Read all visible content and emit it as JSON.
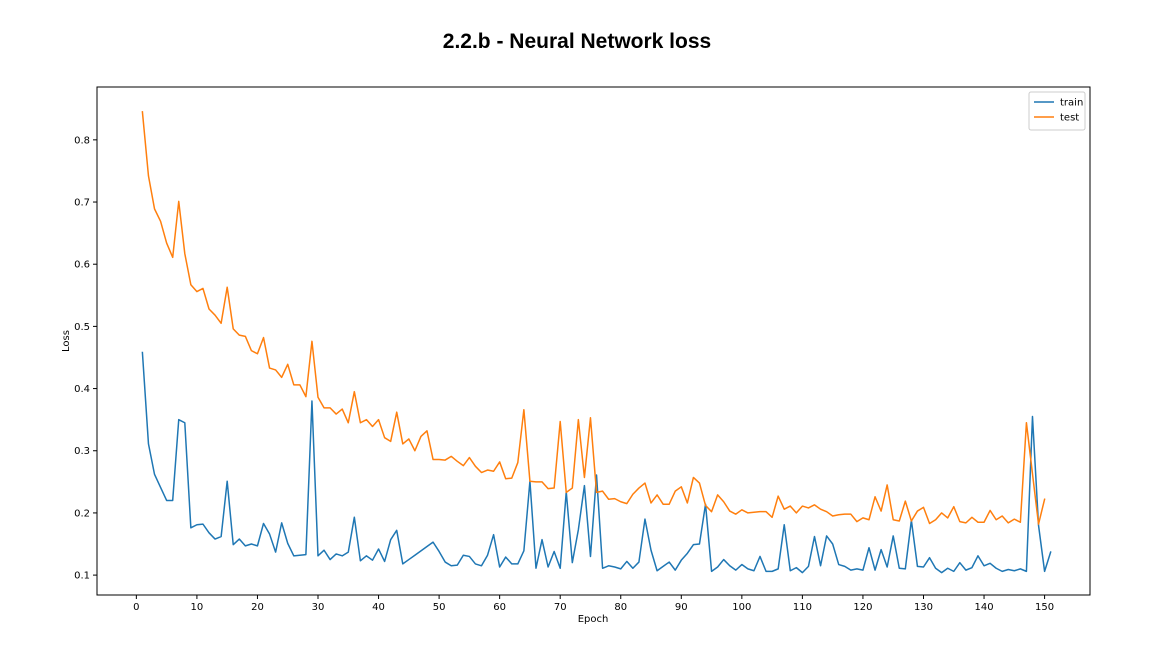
{
  "chart_data": {
    "type": "line",
    "title": "2.2.b - Neural Network loss",
    "xlabel": "Epoch",
    "ylabel": "Loss",
    "xlim": [
      -6.5,
      157.5
    ],
    "ylim": [
      0.068,
      0.885
    ],
    "xticks": [
      0,
      10,
      20,
      30,
      40,
      50,
      60,
      70,
      80,
      90,
      100,
      110,
      120,
      130,
      140,
      150
    ],
    "yticks": [
      0.1,
      0.2,
      0.3,
      0.4,
      0.5,
      0.6,
      0.7,
      0.8
    ],
    "x_start": 1,
    "legend_position": "top-right",
    "grid": false,
    "series": [
      {
        "name": "train",
        "color": "#1f77b4",
        "values": [
          0.458,
          0.311,
          0.262,
          0.241,
          0.22,
          0.22,
          0.35,
          0.345,
          0.176,
          0.181,
          0.182,
          0.168,
          0.158,
          0.162,
          0.251,
          0.149,
          0.158,
          0.147,
          0.15,
          0.147,
          0.183,
          0.166,
          0.137,
          0.184,
          0.151,
          0.131,
          0.132,
          0.133,
          0.38,
          0.131,
          0.14,
          0.125,
          0.134,
          0.131,
          0.137,
          0.193,
          0.123,
          0.131,
          0.124,
          0.142,
          0.122,
          0.157,
          0.172,
          0.118,
          0.125,
          0.132,
          0.139,
          0.146,
          0.153,
          0.138,
          0.121,
          0.115,
          0.116,
          0.132,
          0.13,
          0.118,
          0.115,
          0.132,
          0.165,
          0.113,
          0.129,
          0.118,
          0.118,
          0.139,
          0.251,
          0.111,
          0.157,
          0.113,
          0.138,
          0.111,
          0.234,
          0.12,
          0.173,
          0.244,
          0.13,
          0.261,
          0.111,
          0.115,
          0.113,
          0.11,
          0.122,
          0.111,
          0.121,
          0.19,
          0.14,
          0.107,
          0.114,
          0.121,
          0.108,
          0.124,
          0.135,
          0.149,
          0.15,
          0.214,
          0.106,
          0.113,
          0.125,
          0.115,
          0.108,
          0.117,
          0.11,
          0.107,
          0.13,
          0.106,
          0.106,
          0.11,
          0.181,
          0.107,
          0.112,
          0.104,
          0.114,
          0.162,
          0.115,
          0.163,
          0.15,
          0.117,
          0.114,
          0.108,
          0.11,
          0.108,
          0.144,
          0.108,
          0.141,
          0.113,
          0.163,
          0.111,
          0.11,
          0.188,
          0.114,
          0.113,
          0.128,
          0.111,
          0.104,
          0.111,
          0.106,
          0.12,
          0.108,
          0.112,
          0.131,
          0.115,
          0.119,
          0.111,
          0.106,
          0.109,
          0.107,
          0.11,
          0.106,
          0.355,
          0.18,
          0.106,
          0.137
        ]
      },
      {
        "name": "test",
        "color": "#ff7f0e",
        "values": [
          0.845,
          0.742,
          0.689,
          0.669,
          0.634,
          0.611,
          0.701,
          0.617,
          0.567,
          0.556,
          0.561,
          0.528,
          0.518,
          0.505,
          0.563,
          0.496,
          0.486,
          0.484,
          0.461,
          0.456,
          0.482,
          0.433,
          0.43,
          0.418,
          0.439,
          0.406,
          0.406,
          0.387,
          0.476,
          0.386,
          0.369,
          0.369,
          0.359,
          0.367,
          0.345,
          0.395,
          0.345,
          0.35,
          0.339,
          0.35,
          0.321,
          0.315,
          0.362,
          0.311,
          0.319,
          0.3,
          0.323,
          0.332,
          0.286,
          0.286,
          0.285,
          0.291,
          0.283,
          0.276,
          0.289,
          0.275,
          0.265,
          0.269,
          0.267,
          0.282,
          0.255,
          0.256,
          0.281,
          0.366,
          0.251,
          0.25,
          0.25,
          0.239,
          0.24,
          0.347,
          0.233,
          0.24,
          0.35,
          0.257,
          0.353,
          0.233,
          0.235,
          0.222,
          0.223,
          0.218,
          0.215,
          0.23,
          0.24,
          0.248,
          0.216,
          0.229,
          0.214,
          0.214,
          0.235,
          0.242,
          0.216,
          0.257,
          0.248,
          0.212,
          0.202,
          0.229,
          0.218,
          0.203,
          0.198,
          0.205,
          0.2,
          0.201,
          0.202,
          0.202,
          0.193,
          0.227,
          0.206,
          0.211,
          0.2,
          0.211,
          0.208,
          0.213,
          0.206,
          0.202,
          0.195,
          0.197,
          0.198,
          0.198,
          0.186,
          0.192,
          0.189,
          0.226,
          0.203,
          0.245,
          0.189,
          0.187,
          0.219,
          0.187,
          0.203,
          0.209,
          0.183,
          0.189,
          0.2,
          0.192,
          0.21,
          0.186,
          0.184,
          0.193,
          0.185,
          0.185,
          0.204,
          0.189,
          0.195,
          0.184,
          0.19,
          0.185,
          0.345,
          0.263,
          0.182,
          0.222
        ]
      }
    ]
  }
}
